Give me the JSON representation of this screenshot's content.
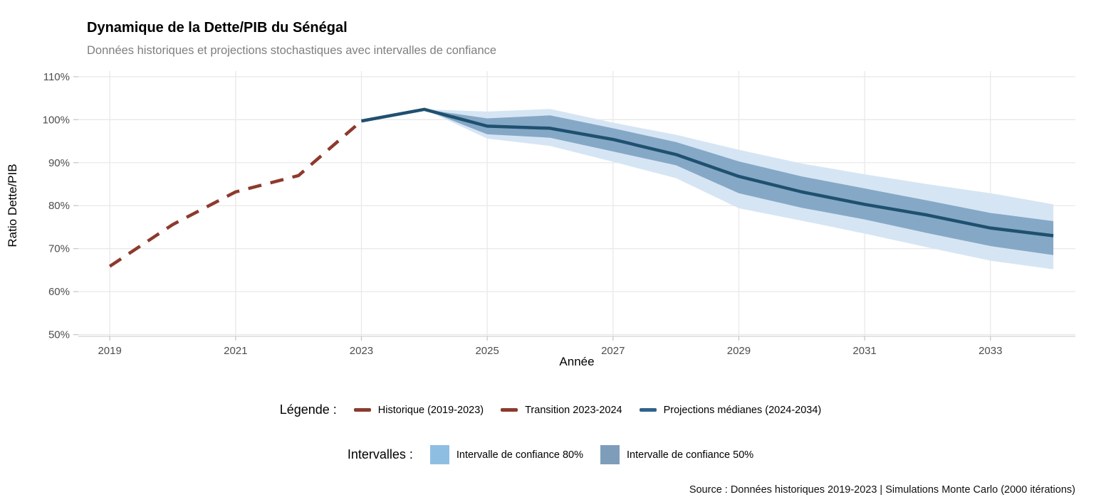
{
  "header": {
    "title": "Dynamique de la Dette/PIB du Sénégal",
    "subtitle": "Données historiques et projections stochastiques avec intervalles de confiance"
  },
  "chart_data": {
    "type": "line",
    "title": "Dynamique de la Dette/PIB du Sénégal",
    "subtitle": "Données historiques et projections stochastiques avec intervalles de confiance",
    "xlabel": "Année",
    "ylabel": "Ratio Dette/PIB",
    "x_ticks": [
      2019,
      2021,
      2023,
      2025,
      2027,
      2029,
      2031,
      2033
    ],
    "y_ticks": [
      50,
      60,
      70,
      80,
      90,
      100,
      110
    ],
    "y_tick_suffix": "%",
    "xlim": [
      2018.5,
      2034.35
    ],
    "ylim": [
      49.6,
      111.3
    ],
    "grid": true,
    "legend_position": "bottom",
    "series": [
      {
        "id": "ci80",
        "name": "Intervalle de confiance 80%",
        "kind": "band",
        "fill": "#d6e5f4",
        "x": [
          2024,
          2025,
          2026,
          2027,
          2028,
          2029,
          2030,
          2031,
          2032,
          2033,
          2034
        ],
        "high": [
          102.4,
          101.9,
          102.5,
          99.3,
          96.5,
          93.0,
          89.8,
          87.3,
          85.0,
          82.9,
          80.3
        ],
        "low": [
          102.4,
          95.6,
          93.9,
          90.2,
          86.4,
          79.4,
          76.5,
          73.5,
          70.3,
          67.2,
          65.2
        ]
      },
      {
        "id": "ci50",
        "name": "Intervalle de confiance 50%",
        "kind": "band",
        "fill": "#85a8c6",
        "x": [
          2024,
          2025,
          2026,
          2027,
          2028,
          2029,
          2030,
          2031,
          2032,
          2033,
          2034
        ],
        "high": [
          102.4,
          100.3,
          101.0,
          98.0,
          94.8,
          90.3,
          86.8,
          84.0,
          81.2,
          78.3,
          76.4
        ],
        "low": [
          102.4,
          96.6,
          95.8,
          92.6,
          89.4,
          82.9,
          79.5,
          76.8,
          73.6,
          70.6,
          68.5
        ]
      },
      {
        "id": "transition",
        "name": "Transition 2023-2024",
        "kind": "line",
        "style": "solid",
        "color": "#8c3a2d",
        "width": 4,
        "x": [
          2023,
          2024
        ],
        "values": [
          99.7,
          102.4
        ]
      },
      {
        "id": "historical",
        "name": "Historique (2019-2023)",
        "kind": "line",
        "style": "dashed",
        "color": "#8c3a2d",
        "width": 4.5,
        "x": [
          2019,
          2020,
          2021,
          2022,
          2023
        ],
        "values": [
          65.9,
          75.6,
          83.2,
          87.0,
          99.7
        ]
      },
      {
        "id": "median",
        "name": "Projections médianes (2024-2034)",
        "kind": "line",
        "style": "solid",
        "color": "#1f5070",
        "width": 4.5,
        "x": [
          2023,
          2024,
          2025,
          2026,
          2027,
          2028,
          2029,
          2030,
          2031,
          2032,
          2033,
          2034
        ],
        "values": [
          99.7,
          102.4,
          98.5,
          98.0,
          95.4,
          91.9,
          86.8,
          83.2,
          80.3,
          77.8,
          74.8,
          73.0
        ]
      }
    ]
  },
  "legend": {
    "lines_title": "Légende :",
    "lines": [
      {
        "label": "Historique (2019-2023)",
        "color": "#8c3a2d"
      },
      {
        "label": "Transition 2023-2024",
        "color": "#8c3a2d"
      },
      {
        "label": "Projections médianes (2024-2034)",
        "color": "#2f628a"
      }
    ],
    "bands_title": "Intervalles :",
    "bands": [
      {
        "label": "Intervalle de confiance 80%",
        "color": "#8fbee3"
      },
      {
        "label": "Intervalle de confiance 50%",
        "color": "#7e9dbb"
      }
    ]
  },
  "caption": "Source : Données historiques 2019-2023 | Simulations Monte Carlo (2000 itérations)"
}
